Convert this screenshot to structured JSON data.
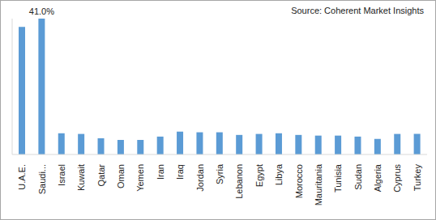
{
  "chart_data": {
    "type": "bar",
    "annotations": [
      "Source: Coherent Market Insights"
    ],
    "categories": [
      "U.A.E.",
      "Saudi...",
      "Israel",
      "Kuwait",
      "Qatar",
      "Oman",
      "Yemen",
      "Iran",
      "Iraq",
      "Jordan",
      "Syria",
      "Lebanon",
      "Egypt",
      "Libya",
      "Morocco",
      "Mauritania",
      "Tunisia",
      "Sudan",
      "Algeria",
      "Cyprus",
      "Turkey"
    ],
    "values": [
      38.5,
      41.0,
      6.4,
      6.2,
      4.9,
      4.4,
      4.4,
      5.4,
      6.9,
      6.7,
      6.7,
      5.9,
      6.2,
      6.4,
      5.9,
      5.7,
      5.7,
      5.4,
      4.7,
      6.2,
      6.2
    ],
    "value_labels": [
      null,
      "41.0%",
      null,
      null,
      null,
      null,
      null,
      null,
      null,
      null,
      null,
      null,
      null,
      null,
      null,
      null,
      null,
      null,
      null,
      null,
      null
    ],
    "data_labels": true,
    "color": "#5b9bd5",
    "ylim": [
      0,
      41
    ],
    "tick_labels": "x",
    "grid": false
  }
}
